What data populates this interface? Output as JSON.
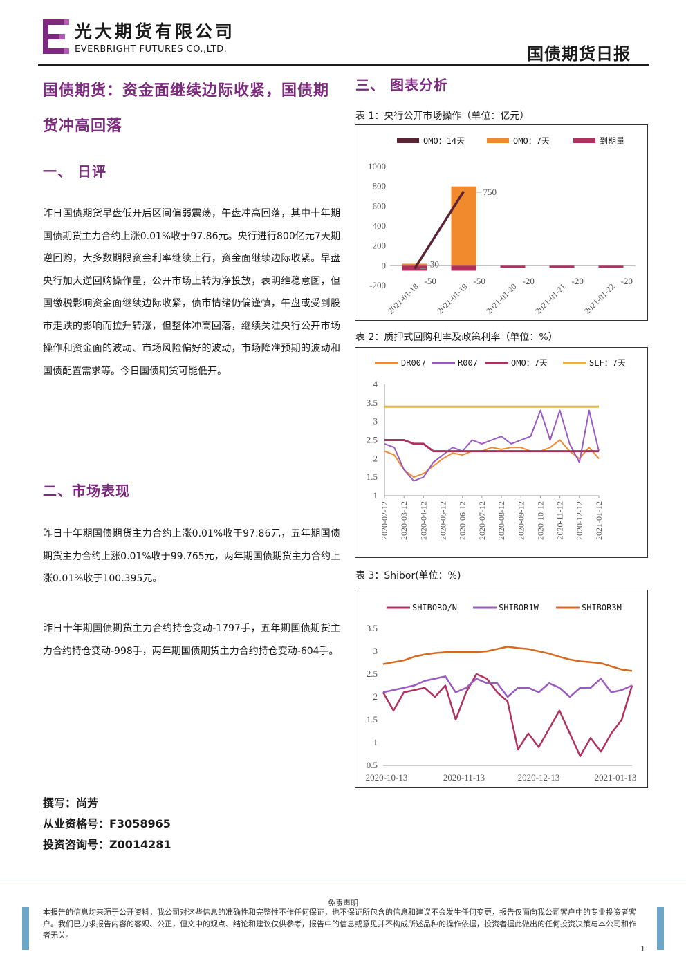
{
  "header": {
    "company_cn": "光大期货有限公司",
    "company_en": "EVERBRIGHT FUTURES CO.,LTD.",
    "report_name": "国债期货日报"
  },
  "headline": "国债期货：资金面继续边际收紧，国债期货冲高回落",
  "section1": {
    "title": "一、  日评",
    "paragraph": "昨日国债期货早盘低开后区间偏弱震荡，午盘冲高回落，其中十年期国债期货主力合约上涨0.01%收于97.86元。央行进行800亿元7天期逆回购，大多数期限资金利率继续上行，资金面继续边际收紧。早盘央行加大逆回购操作量，公开市场上转为净投放，表明维稳意图，但国缴税影响资金面继续边际收紧，债市情绪仍偏谨慎，午盘或受到股市走跌的影响而拉升转涨，但整体冲高回落，继续关注央行公开市场操作和资金面的波动、市场风险偏好的波动，市场降准预期的波动和国债配置需求等。今日国债期货可能低开。"
  },
  "section2": {
    "title": "二、市场表现",
    "paragraph1": "昨日十年期国债期货主力合约上涨0.01%收于97.86元，五年期国债期货主力合约上涨0.01%收于99.765元，两年期国债期货主力合约上涨0.01%收于100.395元。",
    "paragraph2": "昨日十年期国债期货主力合约持仓变动-1797手，五年期国债期货主力合约持仓变动-998手，两年期国债期货主力合约持仓变动-604手。"
  },
  "section3": {
    "title": "三、  图表分析"
  },
  "author": {
    "writer": "撰写：尚芳",
    "qualification": "从业资格号：F3058965",
    "consult": "投资咨询号：Z0014281"
  },
  "footer": {
    "disclaimer_title": "免责声明",
    "disclaimer_text": "本报告的信息均来源于公开资料，我公司对这些信息的准确性和完整性不作任何保证，也不保证所包含的信息和建议不会发生任何变更，报告仅面向我公司客户中的专业投资者客户。我们已力求报告内容的客观、公正，但文中的观点、结论和建议仅供参考，报告中的信息或意见并不构成所述品种的操作依据，投资者据此做出的任何投资决策与本公司和作者无关。",
    "page_number": "1"
  },
  "colors": {
    "brand_purple": "#7b2a7e",
    "omo14": "#5b2333",
    "omo7": "#f08a2c",
    "maturity": "#b03060",
    "dr007": "#f08a2c",
    "r007": "#9a5ac0",
    "slf": "#f0b030",
    "shibor_on": "#b03060",
    "shibor_1w": "#9a5ac0",
    "shibor_3m": "#d86a20"
  },
  "chart_data": [
    {
      "title": "表 1：央行公开市场操作（单位：亿元）",
      "type": "bar",
      "categories": [
        "2021-01-18",
        "2021-01-19",
        "2021-01-20",
        "2021-01-21",
        "2021-01-22"
      ],
      "series": [
        {
          "name": "OMO：14天",
          "type": "line",
          "values": [
            -30,
            750,
            null,
            null,
            null
          ]
        },
        {
          "name": "OMO：7天",
          "values": [
            20,
            800,
            0,
            0,
            0
          ]
        },
        {
          "name": "到期量",
          "values": [
            -50,
            -50,
            -20,
            -20,
            -20
          ]
        }
      ],
      "data_labels": [
        {
          "category": "2021-01-18",
          "text": "-30"
        },
        {
          "category": "2021-01-19",
          "text": "750"
        },
        {
          "category": "2021-01-18",
          "text": "-50"
        },
        {
          "category": "2021-01-19",
          "text": "-50"
        },
        {
          "category": "2021-01-20",
          "text": "-20"
        },
        {
          "category": "2021-01-21",
          "text": "-20"
        },
        {
          "category": "2021-01-22",
          "text": "-20"
        }
      ],
      "ylim": [
        -200,
        1000
      ],
      "yticks": [
        -200,
        0,
        200,
        400,
        600,
        800,
        1000
      ],
      "legend": "top"
    },
    {
      "title": "表 2：质押式回购利率及政策利率（单位：%）",
      "type": "line",
      "x_ticks": [
        "2020-02-12",
        "2020-03-12",
        "2020-04-12",
        "2020-05-12",
        "2020-06-12",
        "2020-07-12",
        "2020-08-12",
        "2020-09-12",
        "2020-10-12",
        "2020-11-12",
        "2020-12-12",
        "2021-01-12"
      ],
      "series": [
        {
          "name": "DR007",
          "values": [
            2.2,
            2.1,
            1.7,
            1.5,
            1.6,
            1.8,
            2.0,
            2.15,
            2.1,
            2.2,
            2.2,
            2.3,
            2.25,
            2.3,
            2.3,
            2.2,
            2.2,
            2.3,
            2.5,
            2.2,
            2.0,
            2.3,
            2.0
          ]
        },
        {
          "name": "R007",
          "values": [
            2.4,
            2.3,
            1.7,
            1.4,
            1.5,
            1.9,
            2.1,
            2.3,
            2.2,
            2.5,
            2.4,
            2.5,
            2.6,
            2.4,
            2.5,
            2.6,
            3.3,
            2.5,
            3.3,
            2.4,
            1.9,
            3.3,
            2.2
          ]
        },
        {
          "name": "OMO：7天",
          "values": [
            2.5,
            2.5,
            2.5,
            2.4,
            2.4,
            2.2,
            2.2,
            2.2,
            2.2,
            2.2,
            2.2,
            2.2,
            2.2,
            2.2,
            2.2,
            2.2,
            2.2,
            2.2,
            2.2,
            2.2,
            2.2,
            2.2,
            2.2
          ]
        },
        {
          "name": "SLF：7天",
          "values": [
            3.4,
            3.4,
            3.4,
            3.4,
            3.4,
            3.4,
            3.4,
            3.4,
            3.4,
            3.4,
            3.4,
            3.4,
            3.4,
            3.4,
            3.4,
            3.4,
            3.4,
            3.4,
            3.4,
            3.4,
            3.4,
            3.4,
            3.4
          ]
        }
      ],
      "ylim": [
        1,
        4
      ],
      "yticks": [
        1,
        1.5,
        2,
        2.5,
        3,
        3.5,
        4
      ],
      "legend": "top"
    },
    {
      "title": "表 3：Shibor(单位：%)",
      "type": "line",
      "x_ticks": [
        "2020-10-13",
        "2020-11-13",
        "2020-12-13",
        "2021-01-13"
      ],
      "series": [
        {
          "name": "SHIBORO/N",
          "values": [
            2.1,
            1.7,
            2.1,
            2.15,
            2.2,
            2.0,
            2.25,
            1.5,
            2.1,
            2.5,
            2.4,
            2.1,
            1.9,
            0.85,
            1.2,
            0.9,
            1.3,
            1.7,
            1.2,
            0.7,
            1.1,
            0.8,
            1.2,
            1.5,
            2.25
          ]
        },
        {
          "name": "SHIBOR1W",
          "values": [
            2.1,
            2.15,
            2.2,
            2.25,
            2.35,
            2.4,
            2.45,
            2.1,
            2.2,
            2.4,
            2.3,
            2.3,
            2.0,
            2.2,
            2.2,
            2.1,
            2.3,
            2.2,
            2.0,
            2.2,
            2.2,
            2.4,
            2.1,
            2.15,
            2.25
          ]
        },
        {
          "name": "SHIBOR3M",
          "values": [
            2.72,
            2.76,
            2.8,
            2.88,
            2.93,
            2.96,
            2.98,
            2.98,
            2.98,
            2.98,
            3.0,
            3.05,
            3.1,
            3.07,
            3.05,
            3.0,
            2.95,
            2.88,
            2.82,
            2.78,
            2.76,
            2.74,
            2.67,
            2.6,
            2.57
          ]
        }
      ],
      "ylim": [
        0.5,
        3.5
      ],
      "yticks": [
        0.5,
        1,
        1.5,
        2,
        2.5,
        3,
        3.5
      ],
      "legend": "top"
    }
  ]
}
